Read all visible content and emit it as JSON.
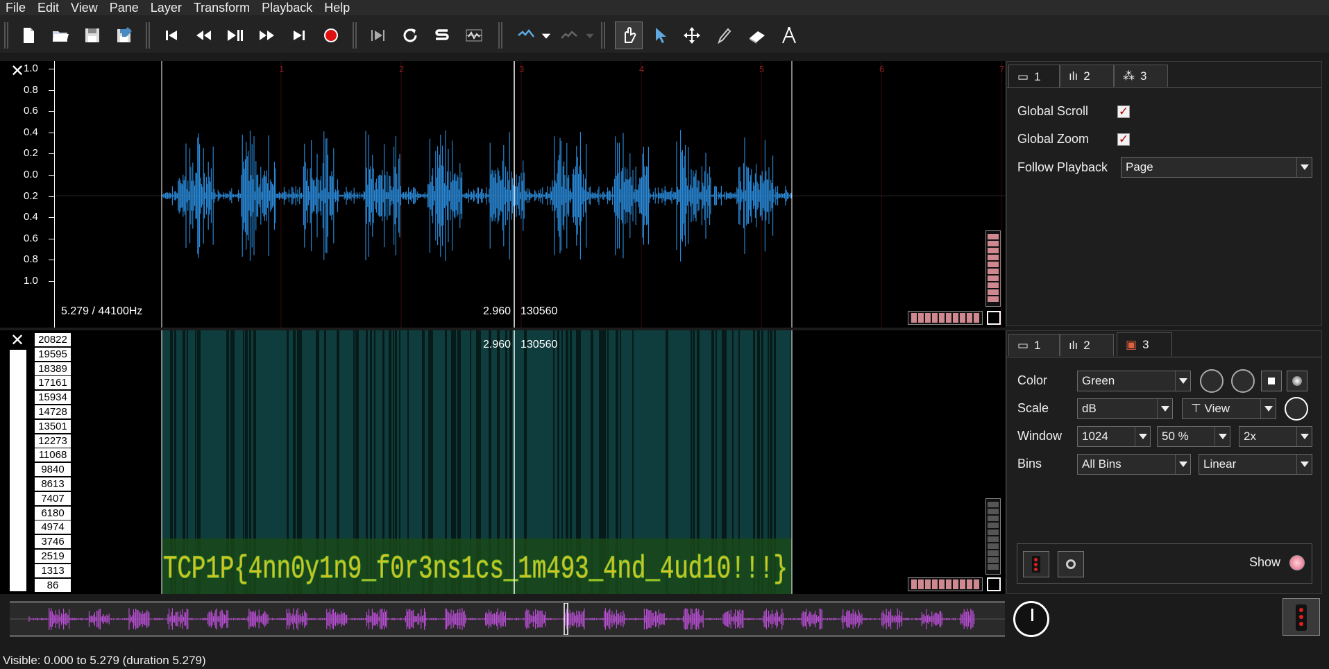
{
  "menu": [
    "File",
    "Edit",
    "View",
    "Pane",
    "Layer",
    "Transform",
    "Playback",
    "Help"
  ],
  "toolbar": {
    "tools": [
      "new-file-icon",
      "open-folder-icon",
      "save-icon",
      "save-as-icon",
      "rewind-start-icon",
      "rewind-icon",
      "play-pause-icon",
      "fast-forward-icon",
      "forward-end-icon",
      "record-icon",
      "play-selection-icon",
      "loop-icon",
      "solo-icon",
      "normalize-icon",
      "undo-icon",
      "redo-icon",
      "navigate-hand-icon",
      "select-arrow-icon",
      "move-icon",
      "draw-pencil-icon",
      "erase-icon",
      "measure-icon"
    ]
  },
  "waveform_pane": {
    "y_ticks": [
      "1.0",
      "0.8",
      "0.6",
      "0.4",
      "0.2",
      "0.0",
      "0.2",
      "0.4",
      "0.6",
      "0.8",
      "1.0"
    ],
    "ruler_marks": [
      "1",
      "2",
      "3",
      "4",
      "5",
      "6",
      "7"
    ],
    "info_left": "5.279 / 44100Hz",
    "cursor_time": "2.960",
    "cursor_frame": "130560",
    "color": "#2b8ee0"
  },
  "spectrogram_pane": {
    "freq_labels": [
      "20822",
      "19595",
      "18389",
      "17161",
      "15934",
      "14728",
      "13501",
      "12273",
      "11068",
      "9840",
      "8613",
      "7407",
      "6180",
      "4974",
      "3746",
      "2519",
      "1313",
      "86"
    ],
    "cursor_time": "2.960",
    "cursor_frame": "130560",
    "hidden_text": "TCP1P{4nn0y1n9_f0r3ns1cs_1m493_4nd_4ud10!!!}"
  },
  "top_panel": {
    "tabs": [
      "1",
      "2",
      "3"
    ],
    "global_scroll_label": "Global Scroll",
    "global_zoom_label": "Global Zoom",
    "follow_playback_label": "Follow Playback",
    "follow_playback_value": "Page"
  },
  "bottom_panel": {
    "tabs": [
      "1",
      "2",
      "3"
    ],
    "color_label": "Color",
    "color_value": "Green",
    "scale_label": "Scale",
    "scale_value": "dB",
    "scale_view_value": "View",
    "window_label": "Window",
    "window_value": "1024",
    "window_overlap": "50 %",
    "window_oversample": "2x",
    "bins_label": "Bins",
    "bins_value": "All Bins",
    "bins_scale": "Linear",
    "show_label": "Show"
  },
  "status": {
    "text": "Visible: 0.000 to 5.279 (duration 5.279)"
  },
  "colors": {
    "accent_wave": "#2b8ee0",
    "overview_wave": "#c24fe0",
    "spec_bg": "#0f3d3d",
    "text_green": "#6cbf2a",
    "text_yellow": "#e0c020"
  }
}
